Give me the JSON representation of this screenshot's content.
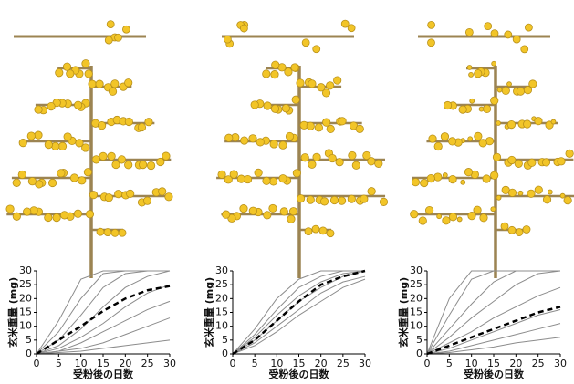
{
  "chart_data": [
    {
      "type": "line",
      "x_label": "受粉後の日数",
      "y_label": "玄米重量 (mg)",
      "x": [
        0,
        5,
        10,
        15,
        20,
        25,
        30
      ],
      "xlim": [
        0,
        30
      ],
      "ylim": [
        0,
        30
      ],
      "xticks": [
        0,
        5,
        10,
        15,
        20,
        25,
        30
      ],
      "yticks": [
        0,
        5,
        10,
        15,
        20,
        25,
        30
      ],
      "grid": false,
      "series": [
        {
          "color": "#8c8c8c",
          "values": [
            0,
            12,
            27,
            30,
            30,
            30,
            30
          ]
        },
        {
          "color": "#8c8c8c",
          "values": [
            0,
            8,
            20,
            29,
            30,
            30,
            30
          ]
        },
        {
          "color": "#8c8c8c",
          "values": [
            0,
            5,
            14,
            24,
            29,
            30,
            30
          ]
        },
        {
          "color": "#8c8c8c",
          "values": [
            0,
            3,
            9,
            17,
            24,
            28,
            30
          ]
        },
        {
          "color": "#8c8c8c",
          "values": [
            0,
            2,
            6,
            11,
            17,
            22,
            25
          ]
        },
        {
          "color": "#8c8c8c",
          "values": [
            0,
            1,
            4,
            8,
            12,
            16,
            19
          ]
        },
        {
          "color": "#8c8c8c",
          "values": [
            0,
            1,
            2,
            4,
            7,
            10,
            13
          ]
        },
        {
          "color": "#8c8c8c",
          "values": [
            0,
            0.5,
            1,
            2,
            3,
            4,
            5
          ]
        },
        {
          "color": "#000000",
          "style": "dashed",
          "values": [
            0,
            5,
            10,
            15.5,
            20,
            23,
            24.5
          ]
        }
      ]
    },
    {
      "type": "line",
      "x_label": "受粉後の日数",
      "y_label": "玄米重量 (mg)",
      "x": [
        0,
        5,
        10,
        15,
        20,
        25,
        30
      ],
      "xlim": [
        0,
        30
      ],
      "ylim": [
        0,
        30
      ],
      "xticks": [
        0,
        5,
        10,
        15,
        20,
        25,
        30
      ],
      "yticks": [
        0,
        5,
        10,
        15,
        20,
        25,
        30
      ],
      "grid": false,
      "series": [
        {
          "color": "#8c8c8c",
          "values": [
            0,
            9,
            20,
            27,
            30,
            30,
            30
          ]
        },
        {
          "color": "#8c8c8c",
          "values": [
            0,
            7,
            16,
            24,
            28,
            30,
            30
          ]
        },
        {
          "color": "#8c8c8c",
          "values": [
            0,
            6,
            14,
            21,
            26,
            29,
            30
          ]
        },
        {
          "color": "#8c8c8c",
          "values": [
            0,
            5,
            12,
            19,
            24,
            28,
            30
          ]
        },
        {
          "color": "#8c8c8c",
          "values": [
            0,
            4,
            10,
            16,
            22,
            26,
            28
          ]
        },
        {
          "color": "#8c8c8c",
          "values": [
            0,
            3,
            8,
            14,
            19,
            24,
            27
          ]
        },
        {
          "color": "#000000",
          "style": "dashed",
          "values": [
            0,
            5,
            12,
            19,
            25,
            28,
            30
          ]
        }
      ]
    },
    {
      "type": "line",
      "x_label": "受粉後の日数",
      "y_label": "玄米重量 (mg)",
      "x": [
        0,
        5,
        10,
        15,
        20,
        25,
        30
      ],
      "xlim": [
        0,
        30
      ],
      "ylim": [
        0,
        30
      ],
      "xticks": [
        0,
        5,
        10,
        15,
        20,
        25,
        30
      ],
      "yticks": [
        0,
        5,
        10,
        15,
        20,
        25,
        30
      ],
      "grid": false,
      "series": [
        {
          "color": "#8c8c8c",
          "values": [
            0,
            20,
            30,
            30,
            30,
            30,
            30
          ]
        },
        {
          "color": "#8c8c8c",
          "values": [
            0,
            14,
            27,
            30,
            30,
            30,
            30
          ]
        },
        {
          "color": "#8c8c8c",
          "values": [
            0,
            9,
            18,
            26,
            30,
            30,
            30
          ]
        },
        {
          "color": "#8c8c8c",
          "values": [
            0,
            6,
            13,
            19,
            25,
            29,
            30
          ]
        },
        {
          "color": "#8c8c8c",
          "values": [
            0,
            4,
            8,
            13,
            17,
            21,
            24
          ]
        },
        {
          "color": "#8c8c8c",
          "values": [
            0,
            2,
            5,
            8,
            11,
            14,
            16
          ]
        },
        {
          "color": "#8c8c8c",
          "values": [
            0,
            1,
            3,
            5,
            7,
            9,
            11
          ]
        },
        {
          "color": "#8c8c8c",
          "values": [
            0,
            0.5,
            1.5,
            2.5,
            4,
            5,
            6
          ]
        },
        {
          "color": "#000000",
          "style": "dashed",
          "values": [
            0,
            3,
            6,
            9,
            12,
            15,
            17
          ]
        }
      ]
    }
  ]
}
